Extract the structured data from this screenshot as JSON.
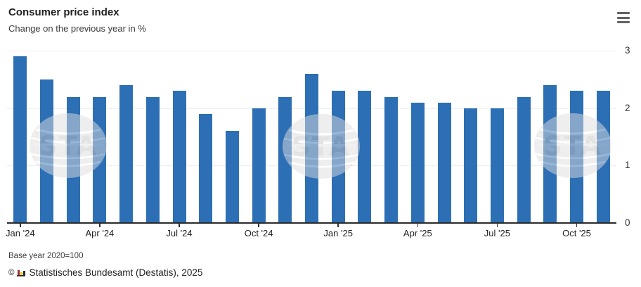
{
  "header": {
    "title": "Consumer price index",
    "subtitle": "Change on the previous year in %"
  },
  "chart_data": {
    "type": "bar",
    "title": "Consumer price index",
    "subtitle": "Change on the previous year in %",
    "categories": [
      "Jan '24",
      "Feb '24",
      "Mar '24",
      "Apr '24",
      "May '24",
      "Jun '24",
      "Jul '24",
      "Aug '24",
      "Sep '24",
      "Oct '24",
      "Nov '24",
      "Dec '24",
      "Jan '25",
      "Feb '25",
      "Mar '25",
      "Apr '25",
      "May '25",
      "Jun '25",
      "Jul '25",
      "Aug '25",
      "Sep '25",
      "Oct '25",
      "Nov '25"
    ],
    "values": [
      2.9,
      2.5,
      2.2,
      2.2,
      2.4,
      2.2,
      2.3,
      1.9,
      1.6,
      2.0,
      2.2,
      2.6,
      2.3,
      2.3,
      2.2,
      2.1,
      2.1,
      2.0,
      2.0,
      2.2,
      2.4,
      2.3,
      2.3
    ],
    "xlabel": "",
    "ylabel": "Change on the previous year in %",
    "ylim": [
      0,
      3
    ],
    "y_ticks": [
      0,
      1,
      2,
      3
    ],
    "x_tick_every": 3,
    "x_tick_labels": [
      "Jan '24",
      "Apr '24",
      "Jul '24",
      "Oct '24",
      "Jan '25",
      "Apr '25",
      "Jul '25",
      "Oct '25"
    ],
    "grid": true,
    "legend": "none",
    "bar_color": "#2d6fb5",
    "watermark_text": "STA"
  },
  "footer": {
    "base_year_note": "Base year 2020=100",
    "copyright_prefix": "©",
    "copyright_text": "Statistisches Bundesamt (Destatis), 2025"
  },
  "colors": {
    "bar": "#2d6fb5",
    "axis_line": "#2b2b2b",
    "grid_line": "#efefef",
    "menu_icon": "#636363",
    "logo_red": "#9c2d38",
    "logo_yellow": "#edc400",
    "logo_dark": "#1f2a3a"
  }
}
